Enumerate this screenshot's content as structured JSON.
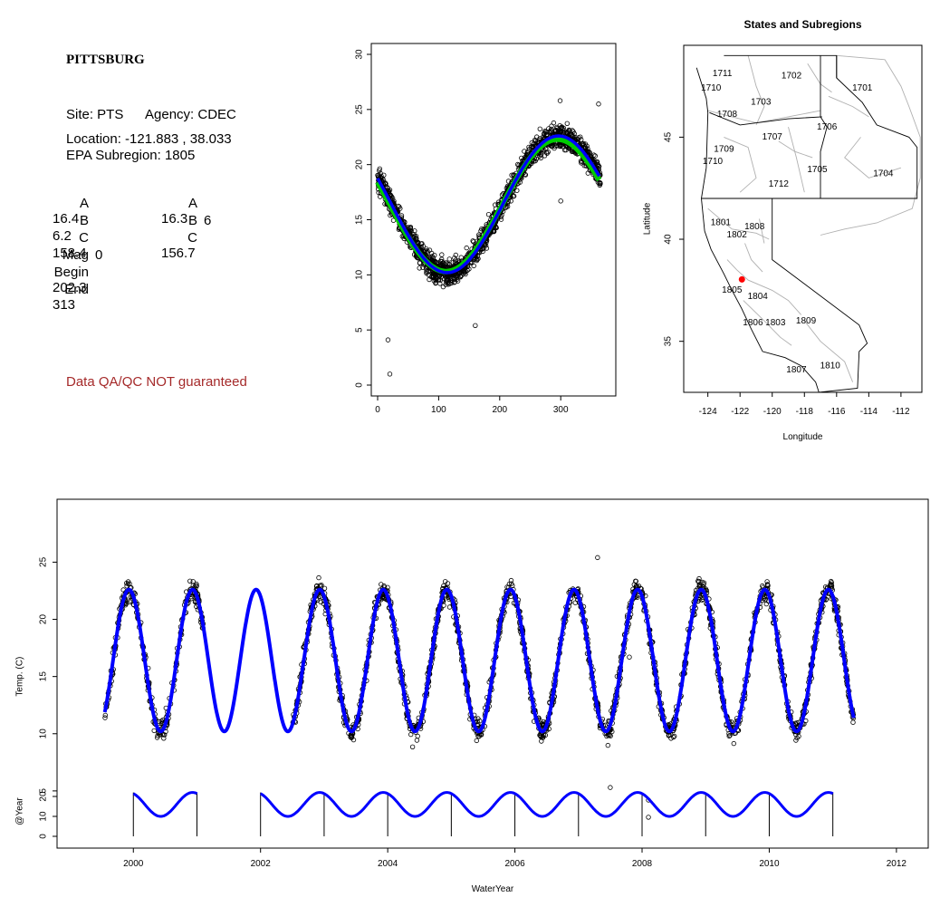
{
  "site_panel": {
    "title": "PITTSBURG",
    "site_label": "Site: PTS",
    "agency_label": "Agency: CDEC",
    "location_label": "Location: -121.883 , 38.033",
    "subregion_label": "EPA Subregion: 1805",
    "coef_col1": [
      {
        "key": "A",
        "value": "16.4"
      },
      {
        "key": "B",
        "value": "6.2"
      },
      {
        "key": "C",
        "value": "158.4"
      },
      {
        "key": "Mag",
        "value": "0"
      },
      {
        "key": "Begin",
        "value": "202.3"
      },
      {
        "key": "End",
        "value": "313"
      }
    ],
    "coef_col2": [
      {
        "key": "A",
        "value": "16.3"
      },
      {
        "key": "B",
        "value": "6"
      },
      {
        "key": "C",
        "value": "156.7"
      }
    ],
    "warning": "Data QA/QC NOT guaranteed",
    "warning_color": "#a52a2a"
  },
  "colors": {
    "fit_line": "#0000ff",
    "fit_line2": "#00cc00",
    "points": "#000000",
    "site_marker": "#ff0000",
    "region_borders": "#b0b0b0"
  },
  "chart_data": [
    {
      "type": "scatter",
      "name": "day-of-year",
      "xlim": [
        0,
        365
      ],
      "ylim": [
        0,
        30
      ],
      "xticks": [
        0,
        100,
        200,
        300
      ],
      "yticks": [
        0,
        5,
        10,
        15,
        20,
        25,
        30
      ],
      "fit_curves": [
        {
          "A": 16.3,
          "B": 6.0,
          "C": 156.7,
          "color": "#00cc00"
        },
        {
          "A": 16.4,
          "B": 6.2,
          "C": 158.4,
          "color": "#0000ff"
        }
      ],
      "outliers": [
        [
          17,
          4.1
        ],
        [
          20,
          1.0
        ],
        [
          160,
          5.4
        ],
        [
          300,
          16.7
        ],
        [
          362,
          25.5
        ],
        [
          299,
          25.8
        ]
      ]
    },
    {
      "type": "map",
      "title": "States and Subregions",
      "xlabel": "Longitude",
      "ylabel": "Latitude",
      "xlim": [
        -125.5,
        -110.7
      ],
      "ylim": [
        32.5,
        49.5
      ],
      "xticks": [
        -124,
        -122,
        -120,
        -118,
        -116,
        -114,
        -112
      ],
      "yticks": [
        35,
        40,
        45
      ],
      "site": {
        "lon": -121.883,
        "lat": 38.033
      },
      "region_labels": [
        {
          "text": "1711",
          "lon": -123.1,
          "lat": 48.1
        },
        {
          "text": "1710",
          "lon": -123.8,
          "lat": 47.4
        },
        {
          "text": "1702",
          "lon": -118.8,
          "lat": 48.0
        },
        {
          "text": "1701",
          "lon": -114.4,
          "lat": 47.4
        },
        {
          "text": "1703",
          "lon": -120.7,
          "lat": 46.7
        },
        {
          "text": "1708",
          "lon": -122.8,
          "lat": 46.1
        },
        {
          "text": "1706",
          "lon": -116.6,
          "lat": 45.5
        },
        {
          "text": "1707",
          "lon": -120.0,
          "lat": 45.0
        },
        {
          "text": "1709",
          "lon": -123.0,
          "lat": 44.4
        },
        {
          "text": "1710",
          "lon": -123.7,
          "lat": 43.8
        },
        {
          "text": "1705",
          "lon": -117.2,
          "lat": 43.4
        },
        {
          "text": "1704",
          "lon": -113.1,
          "lat": 43.2
        },
        {
          "text": "1712",
          "lon": -119.6,
          "lat": 42.7
        },
        {
          "text": "1801",
          "lon": -123.2,
          "lat": 40.8
        },
        {
          "text": "1808",
          "lon": -121.1,
          "lat": 40.6
        },
        {
          "text": "1802",
          "lon": -122.2,
          "lat": 40.2
        },
        {
          "text": "1805",
          "lon": -122.5,
          "lat": 37.5
        },
        {
          "text": "1804",
          "lon": -120.9,
          "lat": 37.2
        },
        {
          "text": "1806",
          "lon": -121.2,
          "lat": 35.9
        },
        {
          "text": "1803",
          "lon": -119.8,
          "lat": 35.9
        },
        {
          "text": "1809",
          "lon": -117.9,
          "lat": 36.0
        },
        {
          "text": "1807",
          "lon": -118.5,
          "lat": 33.6
        },
        {
          "text": "1810",
          "lon": -116.4,
          "lat": 33.8
        }
      ]
    },
    {
      "type": "scatter",
      "name": "time-series",
      "xlabel": "WaterYear",
      "ylabel": "Temp. (C)",
      "xlim": [
        1998.8,
        2012.5
      ],
      "ylim": [
        0.0,
        30.5
      ],
      "xticks": [
        2000,
        2002,
        2004,
        2006,
        2008,
        2010,
        2012
      ],
      "yticks": [
        5,
        10,
        15,
        20,
        25
      ],
      "fit_start": 1999.55,
      "fit_end": 2011.33,
      "data_gap": [
        2001.1,
        2002.5
      ],
      "outliers": [
        [
          2007.5,
          5.3
        ],
        [
          2008.1,
          4.2
        ],
        [
          2008.1,
          2.7
        ],
        [
          2007.8,
          16.7
        ],
        [
          2007.3,
          25.4
        ]
      ],
      "sub_ylabel": "@Year",
      "sub_yticks": [
        0,
        10,
        20
      ],
      "sub_ylim": [
        0,
        25
      ],
      "sub_years": [
        2000,
        2001,
        2002,
        2003,
        2004,
        2005,
        2006,
        2007,
        2008,
        2009,
        2010,
        2011
      ]
    }
  ]
}
